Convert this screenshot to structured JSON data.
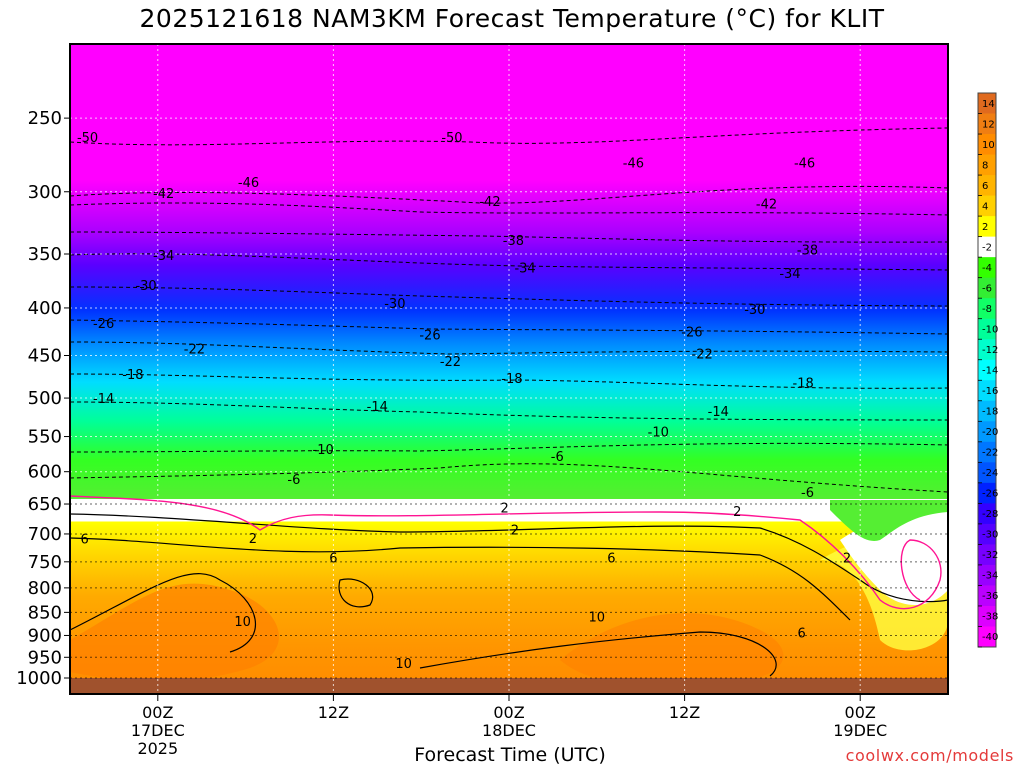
{
  "chart_data": {
    "type": "heatmap",
    "title": "2025121618 NAM3KM Forecast Temperature (°C) for KLIT",
    "xlabel": "Forecast Time (UTC)",
    "ylabel": "",
    "y_scale": "pressure (reversed, log-like)",
    "y_ticks": [
      250,
      300,
      350,
      400,
      450,
      500,
      550,
      600,
      650,
      700,
      750,
      800,
      850,
      900,
      950,
      1000
    ],
    "x_ticks": [
      {
        "hour": 6,
        "lines": [
          "00Z",
          "17DEC",
          "2025"
        ]
      },
      {
        "hour": 18,
        "lines": [
          "12Z"
        ]
      },
      {
        "hour": 30,
        "lines": [
          "00Z",
          "18DEC"
        ]
      },
      {
        "hour": 42,
        "lines": [
          "12Z"
        ]
      },
      {
        "hour": 54,
        "lines": [
          "00Z",
          "19DEC"
        ]
      }
    ],
    "x_range_hours": [
      0,
      60
    ],
    "y_range_hpa": [
      200,
      1000
    ],
    "grid": "dotted",
    "colorbar": {
      "placement": "right",
      "labels": [
        "14",
        "12",
        "10",
        "8",
        "6",
        "4",
        "2",
        "-2",
        "-4",
        "-6",
        "-8",
        "-10",
        "-12",
        "-14",
        "-16",
        "-18",
        "-20",
        "-22",
        "-24",
        "-26",
        "-28",
        "-30",
        "-32",
        "-34",
        "-36",
        "-38",
        "-40"
      ],
      "colors": [
        "#e06a1e",
        "#f07e12",
        "#ff8c00",
        "#ffa000",
        "#ffb400",
        "#ffd000",
        "#ffff00",
        "#ffffff",
        "#33ff00",
        "#33ee33",
        "#11ff66",
        "#00ff99",
        "#00ffcc",
        "#00ffff",
        "#00ddff",
        "#00bbff",
        "#0099ff",
        "#0077ff",
        "#0055ff",
        "#0022ff",
        "#3300ff",
        "#5500ff",
        "#7700ff",
        "#9900ff",
        "#bb00ff",
        "#dd00ff",
        "#ff00ff"
      ]
    },
    "contour_labels": [
      {
        "text": "-50",
        "hour": 1.2,
        "hpa": 262
      },
      {
        "text": "-50",
        "hour": 26.1,
        "hpa": 262
      },
      {
        "text": "-46",
        "hour": 12.2,
        "hpa": 293
      },
      {
        "text": "-46",
        "hour": 38.5,
        "hpa": 279
      },
      {
        "text": "-46",
        "hour": 50.2,
        "hpa": 279
      },
      {
        "text": "-42",
        "hour": 6.4,
        "hpa": 301
      },
      {
        "text": "-42",
        "hour": 28.7,
        "hpa": 307
      },
      {
        "text": "-42",
        "hour": 47.6,
        "hpa": 309
      },
      {
        "text": "-38",
        "hour": 30.3,
        "hpa": 338
      },
      {
        "text": "-38",
        "hour": 50.4,
        "hpa": 346
      },
      {
        "text": "-34",
        "hour": 6.4,
        "hpa": 351
      },
      {
        "text": "-34",
        "hour": 31.1,
        "hpa": 362
      },
      {
        "text": "-34",
        "hour": 49.2,
        "hpa": 367
      },
      {
        "text": "-30",
        "hour": 5.2,
        "hpa": 378
      },
      {
        "text": "-30",
        "hour": 22.2,
        "hpa": 395
      },
      {
        "text": "-30",
        "hour": 46.8,
        "hpa": 401
      },
      {
        "text": "-26",
        "hour": 2.3,
        "hpa": 415
      },
      {
        "text": "-26",
        "hour": 24.6,
        "hpa": 427
      },
      {
        "text": "-26",
        "hour": 42.5,
        "hpa": 424
      },
      {
        "text": "-22",
        "hour": 8.5,
        "hpa": 442
      },
      {
        "text": "-22",
        "hour": 26.0,
        "hpa": 456
      },
      {
        "text": "-22",
        "hour": 43.2,
        "hpa": 448
      },
      {
        "text": "-18",
        "hour": 4.3,
        "hpa": 471
      },
      {
        "text": "-18",
        "hour": 30.2,
        "hpa": 476
      },
      {
        "text": "-18",
        "hour": 50.1,
        "hpa": 481
      },
      {
        "text": "-14",
        "hour": 2.3,
        "hpa": 500
      },
      {
        "text": "-14",
        "hour": 21.0,
        "hpa": 510
      },
      {
        "text": "-14",
        "hour": 44.3,
        "hpa": 516
      },
      {
        "text": "-10",
        "hour": 17.3,
        "hpa": 567
      },
      {
        "text": "-10",
        "hour": 40.2,
        "hpa": 543
      },
      {
        "text": "-6",
        "hour": 15.3,
        "hpa": 611
      },
      {
        "text": "-6",
        "hour": 33.3,
        "hpa": 577
      },
      {
        "text": "-6",
        "hour": 50.4,
        "hpa": 631
      },
      {
        "text": "2",
        "hour": 29.7,
        "hpa": 656
      },
      {
        "text": "2",
        "hour": 30.4,
        "hpa": 692
      },
      {
        "text": "2",
        "hour": 45.6,
        "hpa": 661
      },
      {
        "text": "2",
        "hour": 12.5,
        "hpa": 707
      },
      {
        "text": "2",
        "hour": 53.1,
        "hpa": 742
      },
      {
        "text": "6",
        "hour": 1.0,
        "hpa": 708
      },
      {
        "text": "6",
        "hour": 18.0,
        "hpa": 742
      },
      {
        "text": "6",
        "hour": 37.0,
        "hpa": 742
      },
      {
        "text": "6",
        "hour": 50.0,
        "hpa": 893
      },
      {
        "text": "10",
        "hour": 11.8,
        "hpa": 868
      },
      {
        "text": "10",
        "hour": 36.0,
        "hpa": 859
      },
      {
        "text": "10",
        "hour": 22.8,
        "hpa": 963
      }
    ]
  },
  "credit": "coolwx.com/models"
}
